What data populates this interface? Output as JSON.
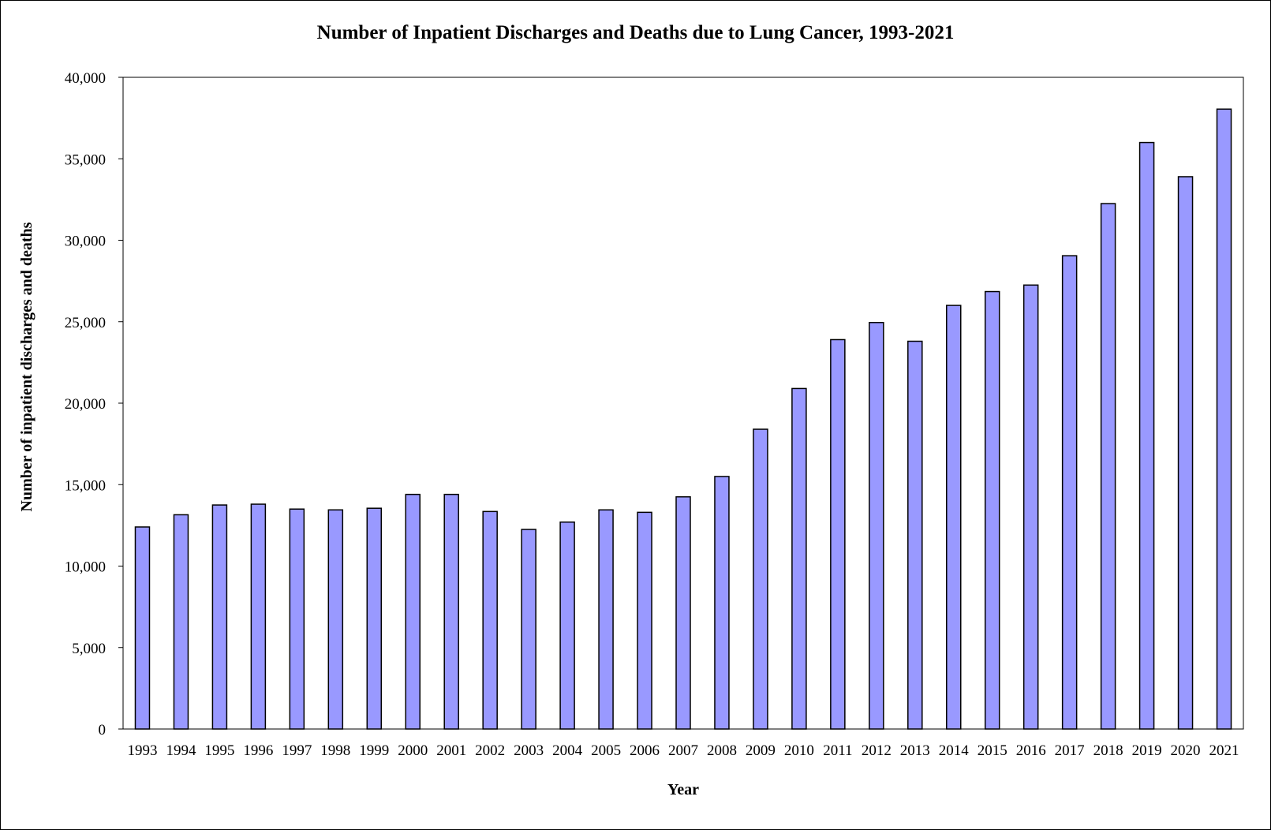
{
  "chart_data": {
    "type": "bar",
    "title": "Number of Inpatient Discharges and Deaths due to Lung Cancer, 1993-2021",
    "xlabel": "Year",
    "ylabel": "Number of inpatient discharges and deaths",
    "ylim": [
      0,
      40000
    ],
    "yticks": [
      0,
      5000,
      10000,
      15000,
      20000,
      25000,
      30000,
      35000,
      40000
    ],
    "ytick_labels": [
      "0",
      "5,000",
      "10,000",
      "15,000",
      "20,000",
      "25,000",
      "30,000",
      "35,000",
      "40,000"
    ],
    "grid": false,
    "legend": "none",
    "bar_color": "#9999FF",
    "bar_edge_color": "#000000",
    "categories": [
      "1993",
      "1994",
      "1995",
      "1996",
      "1997",
      "1998",
      "1999",
      "2000",
      "2001",
      "2002",
      "2003",
      "2004",
      "2005",
      "2006",
      "2007",
      "2008",
      "2009",
      "2010",
      "2011",
      "2012",
      "2013",
      "2014",
      "2015",
      "2016",
      "2017",
      "2018",
      "2019",
      "2020",
      "2021"
    ],
    "values": [
      12400,
      13150,
      13750,
      13800,
      13500,
      13450,
      13550,
      14400,
      14400,
      13350,
      12250,
      12700,
      13450,
      13300,
      14250,
      15500,
      18400,
      20900,
      23900,
      24950,
      23800,
      26000,
      26850,
      27250,
      29050,
      32250,
      36000,
      33900,
      38050
    ]
  }
}
